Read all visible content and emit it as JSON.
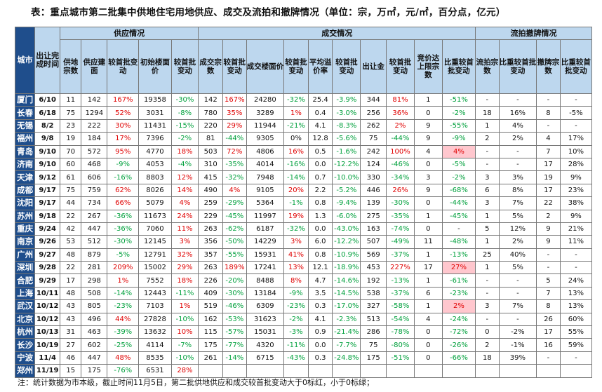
{
  "title": "表：重点城市第二批集中供地住宅用地供应、成交及流拍和撤牌情况（单位：宗，万㎡，元/㎡，百分点，亿元）",
  "groups": {
    "supply": "供应情况",
    "deal": "成交情况",
    "flow": "流拍撤牌情况"
  },
  "columns": [
    "城市",
    "出让完成时间",
    "供地宗数",
    "供应建面",
    "较首批变动",
    "初始楼面价",
    "较首批变动",
    "成交宗数",
    "较首批变动",
    "成交楼面价",
    "较首批变动",
    "平均溢价率",
    "较首批变动",
    "出让金",
    "较首批变动",
    "竞价达上限宗数",
    "比重较首批变动",
    "流拍宗数",
    "比重较首批变动",
    "撤牌宗数",
    "比重较首批变动"
  ],
  "rows": [
    [
      "厦门",
      "6/10",
      "11",
      "142",
      "167%",
      "19358",
      "-30%",
      "142",
      "167%",
      "24280",
      "-32%",
      "25.4",
      "-3.9%",
      "344",
      "81%",
      "1",
      "-51%",
      "-",
      "-",
      "-",
      "-"
    ],
    [
      "长春",
      "6/18",
      "75",
      "1294",
      "52%",
      "3031",
      "-8%",
      "780",
      "35%",
      "3289",
      "1%",
      "0.4",
      "-3.0%",
      "256",
      "36%",
      "0",
      "-2%",
      "18",
      "16%",
      "8",
      "-5%"
    ],
    [
      "无锡",
      "8/2",
      "23",
      "222",
      "30%",
      "11431",
      "-15%",
      "220",
      "29%",
      "11944",
      "-21%",
      "4.1",
      "-8.3%",
      "262",
      "2%",
      "9",
      "-55%",
      "1",
      "4%",
      "-",
      "-"
    ],
    [
      "福州",
      "9/8",
      "19",
      "184",
      "17%",
      "7396",
      "-2%",
      "81",
      "-44%",
      "9305",
      "0%",
      "12.8",
      "-5.6%",
      "75",
      "-44%",
      "9",
      "-9%",
      "2",
      "2%",
      "4",
      "17%"
    ],
    [
      "青岛",
      "9/10",
      "70",
      "572",
      "95%",
      "4770",
      "18%",
      "503",
      "72%",
      "4806",
      "16%",
      "0.5",
      "-1.6%",
      "242",
      "100%",
      "4",
      "4%",
      "-",
      "-",
      "7",
      "10%"
    ],
    [
      "济南",
      "9/10",
      "60",
      "468",
      "-9%",
      "4053",
      "-4%",
      "310",
      "-35%",
      "4014",
      "-16%",
      "0.0",
      "-12.2%",
      "124",
      "-46%",
      "0",
      "-5%",
      "-",
      "-",
      "17",
      "28%"
    ],
    [
      "天津",
      "9/12",
      "61",
      "606",
      "-16%",
      "8803",
      "12%",
      "415",
      "-32%",
      "7948",
      "-14%",
      "0.7",
      "-10.0%",
      "330",
      "-34%",
      "3",
      "-2%",
      "3",
      "3%",
      "19",
      "9%"
    ],
    [
      "成都",
      "9/17",
      "75",
      "759",
      "62%",
      "8026",
      "14%",
      "490",
      "4%",
      "9105",
      "20%",
      "2.2",
      "-5.2%",
      "446",
      "26%",
      "9",
      "-68%",
      "6",
      "8%",
      "17",
      "23%"
    ],
    [
      "沈阳",
      "9/17",
      "44",
      "734",
      "66%",
      "5079",
      "4%",
      "259",
      "-29%",
      "5364",
      "-1%",
      "0.8",
      "-9.4%",
      "139",
      "-30%",
      "0",
      "-44%",
      "3",
      "7%",
      "22",
      "38%"
    ],
    [
      "苏州",
      "9/18",
      "22",
      "267",
      "-36%",
      "11673",
      "24%",
      "229",
      "-45%",
      "11997",
      "19%",
      "1.3",
      "-6.0%",
      "275",
      "-35%",
      "1",
      "-45%",
      "1",
      "5%",
      "2",
      "9%"
    ],
    [
      "重庆",
      "9/24",
      "42",
      "447",
      "-36%",
      "7060",
      "11%",
      "263",
      "-62%",
      "6187",
      "-32%",
      "0.0",
      "-43.0%",
      "163",
      "-74%",
      "0",
      "-",
      "5",
      "12%",
      "9",
      "21%"
    ],
    [
      "南京",
      "9/26",
      "53",
      "512",
      "-30%",
      "12145",
      "3%",
      "356",
      "-50%",
      "14229",
      "3%",
      "6.0",
      "-12.2%",
      "507",
      "-49%",
      "11",
      "-48%",
      "1",
      "2%",
      "9",
      "11%"
    ],
    [
      "广州",
      "9/27",
      "48",
      "879",
      "-5%",
      "12791",
      "32%",
      "357",
      "-55%",
      "15931",
      "41%",
      "0.8",
      "-10.9%",
      "569",
      "-37%",
      "1",
      "-13%",
      "25",
      "40%",
      "-",
      "-"
    ],
    [
      "深圳",
      "9/28",
      "22",
      "281",
      "209%",
      "15002",
      "29%",
      "263",
      "189%",
      "17241",
      "13%",
      "12.1",
      "-18.9%",
      "453",
      "227%",
      "17",
      "27%",
      "1",
      "5%",
      "-",
      "-"
    ],
    [
      "合肥",
      "9/29",
      "17",
      "298",
      "1%",
      "7552",
      "18%",
      "226",
      "-20%",
      "8488",
      "8%",
      "4.7",
      "-14.6%",
      "192",
      "-13%",
      "1",
      "-61%",
      "-",
      "-",
      "5",
      "24%"
    ],
    [
      "上海",
      "10/11",
      "48",
      "508",
      "-14%",
      "12443",
      "-11%",
      "409",
      "-30%",
      "13184",
      "-9%",
      "3.5",
      "-14.5%",
      "538",
      "-37%",
      "6",
      "-23%",
      "-",
      "-",
      "7",
      "13%"
    ],
    [
      "武汉",
      "10/12",
      "43",
      "805",
      "-23%",
      "7103",
      "1%",
      "519",
      "-46%",
      "6309",
      "-23%",
      "0.3",
      "-17.0%",
      "327",
      "-58%",
      "1",
      "2%",
      "3",
      "7%",
      "8",
      "13%"
    ],
    [
      "北京",
      "10/12",
      "43",
      "496",
      "44%",
      "27828",
      "-10%",
      "162",
      "-53%",
      "31623",
      "-2%",
      "4.1",
      "-2.3%",
      "513",
      "-54%",
      "4",
      "-24%",
      "-",
      "-",
      "26",
      "60%"
    ],
    [
      "杭州",
      "10/13",
      "31",
      "463",
      "-39%",
      "13632",
      "10%",
      "115",
      "-57%",
      "15031",
      "-3%",
      "0.9",
      "-21.4%",
      "286",
      "-78%",
      "0",
      "-72%",
      "0",
      "-2%",
      "17",
      "55%"
    ],
    [
      "长沙",
      "10/19",
      "27",
      "602",
      "-25%",
      "4114",
      "-7%",
      "175",
      "-77%",
      "4320",
      "-11%",
      "0.0",
      "-7.7%",
      "75",
      "-80%",
      "0",
      "-26%",
      "2",
      "-1%",
      "16",
      "59%"
    ],
    [
      "宁波",
      "11/4",
      "46",
      "447",
      "48%",
      "8535",
      "-10%",
      "261",
      "-14%",
      "6715",
      "-43%",
      "0.3",
      "-24.8%",
      "175",
      "-51%",
      "0",
      "-66%",
      "18",
      "39%",
      "-",
      "-"
    ],
    [
      "郑州",
      "11/19",
      "15",
      "175",
      "-76%",
      "6531",
      "28%",
      "",
      "",
      "",
      "",
      "",
      "",
      "",
      "",
      "",
      "",
      "",
      "",
      "",
      ""
    ]
  ],
  "note": "注：统计数据为市本级，截止时间11月5日，第二批供地供应和成交较首批变动大于0标红，小于0标绿；"
}
